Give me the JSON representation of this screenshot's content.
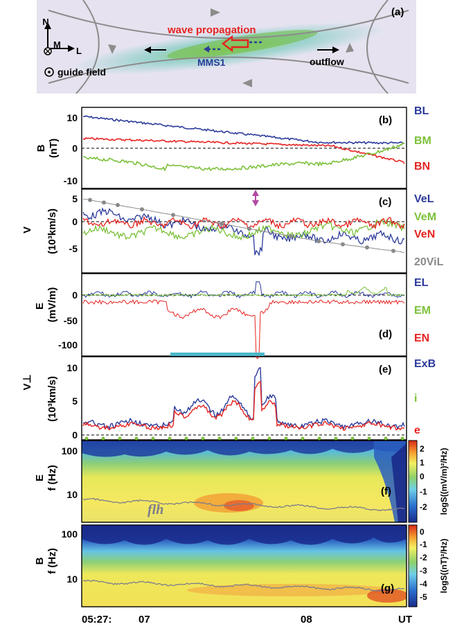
{
  "panel_a": {
    "label": "(a)",
    "axis_n": "N",
    "axis_m": "M",
    "axis_l": "L",
    "wave_propagation": "wave propagation",
    "spacecraft": "MMS1",
    "outflow": "outflow",
    "guide_field": "guide field"
  },
  "panels": {
    "b": {
      "label": "(b)",
      "ylabel": "B",
      "yunit": "(nT)"
    },
    "c": {
      "label": "(c)",
      "ylabel": "V",
      "yunit": "(10³km/s)"
    },
    "d": {
      "label": "(d)",
      "ylabel": "E",
      "yunit": "(mV/m)"
    },
    "e": {
      "label": "(e)",
      "ylabel": "V⊥",
      "yunit": "(10³km/s)"
    },
    "f": {
      "label": "(f)",
      "ylabel": "E",
      "yunit": "f (Hz)",
      "cbar_label": "logS((mV/m)²/Hz)",
      "annotation": "flh"
    },
    "g": {
      "label": "(g)",
      "ylabel": "B",
      "yunit": "f (Hz)",
      "cbar_label": "logS((nT)²/Hz)"
    }
  },
  "legends": {
    "b": [
      {
        "text": "BL",
        "color": "#2b3a9a"
      },
      {
        "text": "BM",
        "color": "#7cc13a"
      },
      {
        "text": "BN",
        "color": "#e52320"
      }
    ],
    "c": [
      {
        "text": "VeL",
        "color": "#2b3a9a"
      },
      {
        "text": "VeM",
        "color": "#7cc13a"
      },
      {
        "text": "VeN",
        "color": "#e52320"
      },
      {
        "text": "20ViL",
        "color": "#8a8a8a"
      }
    ],
    "d": [
      {
        "text": "EL",
        "color": "#2b3a9a"
      },
      {
        "text": "EM",
        "color": "#7cc13a"
      },
      {
        "text": "EN",
        "color": "#e52320"
      }
    ],
    "e": [
      {
        "text": "ExB",
        "color": "#2b3a9a"
      },
      {
        "text": "i",
        "color": "#7cc13a"
      },
      {
        "text": "e",
        "color": "#e52320"
      }
    ]
  },
  "ticks": {
    "b": [
      "10",
      "0",
      "-10"
    ],
    "c": [
      "5",
      "0",
      "-5"
    ],
    "d": [
      "0",
      "-50",
      "-100"
    ],
    "e": [
      "10",
      "5",
      "0"
    ],
    "f": [
      "100",
      "10"
    ],
    "g": [
      "100",
      "10"
    ],
    "cbar_f": [
      "2",
      "1",
      "0",
      "-1",
      "-2"
    ],
    "cbar_g": [
      "0",
      "-1",
      "-2",
      "-3",
      "-4",
      "-5"
    ],
    "x": [
      "05:27:",
      "07",
      "08",
      "UT"
    ]
  },
  "colors": {
    "blue": "#2b3a9a",
    "green": "#7cc13a",
    "red": "#e52320",
    "gray": "#8a8a8a",
    "cyan_bar": "#4ab8c8",
    "magenta": "#b04aa0"
  }
}
